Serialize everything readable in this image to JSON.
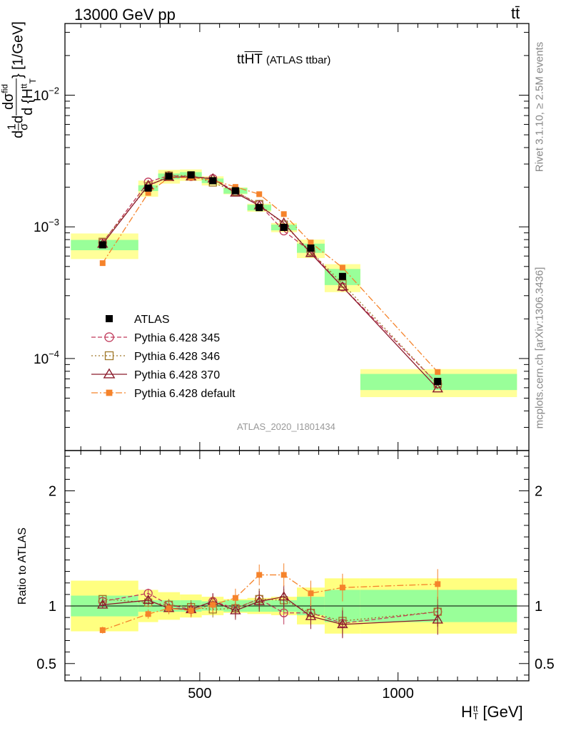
{
  "header": {
    "energy_label": "13000 GeV pp",
    "process_label": "tt̄"
  },
  "side_text": {
    "rivet": "Rivet 3.1.10, ≥ 2.5M events",
    "mcplots": "mcplots.cern.ch [arXiv:1306.3436]"
  },
  "chart_data": {
    "type": "line",
    "title": "tt̄HT (ATLAS ttbar)",
    "title_main": "tt",
    "title_over": "HT",
    "title_sub": "(ATLAS ttbar)",
    "analysis_label": "ATLAS_2020_I1801434",
    "ylabel": "d(1/σ dσ^(fid)) / d{H_T^(tt)} [1/GeV]",
    "ylabel_parts": {
      "a": "d",
      "b": "1",
      "c": "σ",
      "d": "d",
      "e": "dσ",
      "f": "fid",
      "g": "d {H",
      "h": "tt",
      "i": "T",
      "j": "} [1/GeV]"
    },
    "xlabel": "H_T^tt [GeV]",
    "xlabel_parts": {
      "h": "H",
      "sup": "tt",
      "sub": "T",
      "unit": "[GeV]"
    },
    "xlim": [
      160,
      1330
    ],
    "ylim": [
      2e-05,
      0.035
    ],
    "y_scale": "log",
    "ratio_ylabel": "Ratio to ATLAS",
    "ratio_ylim": [
      0.35,
      2.35
    ],
    "x_ticks": [
      {
        "v": 500,
        "label": "500"
      },
      {
        "v": 1000,
        "label": "1000"
      }
    ],
    "y_ticks": [
      {
        "v": 0.0001,
        "mant": "10",
        "exp": "−4"
      },
      {
        "v": 0.001,
        "mant": "10",
        "exp": "−3"
      },
      {
        "v": 0.01,
        "mant": "10",
        "exp": "−2"
      }
    ],
    "ratio_ticks": [
      {
        "v": 0.5,
        "label": "0.5"
      },
      {
        "v": 1,
        "label": "1"
      },
      {
        "v": 2,
        "label": "2"
      }
    ],
    "bin_edges": [
      175,
      345,
      395,
      450,
      505,
      560,
      620,
      680,
      745,
      815,
      905,
      1300
    ],
    "x": [
      255,
      370,
      422,
      478,
      533,
      590,
      650,
      712,
      780,
      860,
      1100
    ],
    "data": {
      "name": "ATLAS",
      "values": [
        0.00073,
        0.00197,
        0.00242,
        0.00248,
        0.00224,
        0.00188,
        0.0014,
        0.00099,
        0.00069,
        0.00042,
        6.7e-05
      ],
      "band_inner": [
        0.09,
        0.05,
        0.05,
        0.05,
        0.04,
        0.05,
        0.05,
        0.05,
        0.08,
        0.14,
        0.14
      ],
      "band_outer": [
        0.22,
        0.14,
        0.12,
        0.1,
        0.08,
        0.06,
        0.07,
        0.08,
        0.16,
        0.24,
        0.24
      ]
    },
    "legend": {
      "position": "bottom-left"
    },
    "series": [
      {
        "name": "Pythia 6.428 345",
        "color": "#c0395a",
        "marker": "circle",
        "dash": "6,3",
        "values": [
          0.00076,
          0.00219,
          0.00245,
          0.00241,
          0.00233,
          0.00185,
          0.00148,
          0.00093,
          0.00065,
          0.00035,
          6.4e-05
        ],
        "ratio": [
          1.04,
          1.11,
          1.01,
          0.97,
          1.04,
          0.98,
          1.06,
          0.94,
          0.94,
          0.85,
          0.95
        ]
      },
      {
        "name": "Pythia 6.428 346",
        "color": "#a0782a",
        "marker": "square",
        "dash": "2,3",
        "values": [
          0.00077,
          0.00203,
          0.00245,
          0.00245,
          0.00217,
          0.00185,
          0.00149,
          0.00104,
          0.00065,
          0.00037,
          6.4e-05
        ],
        "ratio": [
          1.06,
          1.03,
          1.01,
          0.99,
          0.97,
          0.98,
          1.06,
          1.05,
          0.94,
          0.87,
          0.95
        ]
      },
      {
        "name": "Pythia 6.428 370",
        "color": "#8b1a2b",
        "marker": "triangle",
        "dash": "",
        "values": [
          0.00074,
          0.00207,
          0.00238,
          0.0024,
          0.00232,
          0.00181,
          0.00145,
          0.00107,
          0.00063,
          0.00035,
          5.9e-05
        ],
        "ratio": [
          1.01,
          1.05,
          0.98,
          0.97,
          1.04,
          0.96,
          1.04,
          1.08,
          0.91,
          0.84,
          0.88
        ]
      },
      {
        "name": "Pythia 6.428 default",
        "color": "#f5832b",
        "marker": "filled-square",
        "dash": "9,3,2,3",
        "values": [
          0.00053,
          0.00181,
          0.00236,
          0.00237,
          0.00226,
          0.00201,
          0.00177,
          0.00125,
          0.00076,
          0.00049,
          7.9e-05
        ],
        "ratio": [
          0.79,
          0.93,
          0.98,
          0.96,
          1.01,
          1.07,
          1.27,
          1.27,
          1.11,
          1.16,
          1.19
        ]
      }
    ]
  }
}
